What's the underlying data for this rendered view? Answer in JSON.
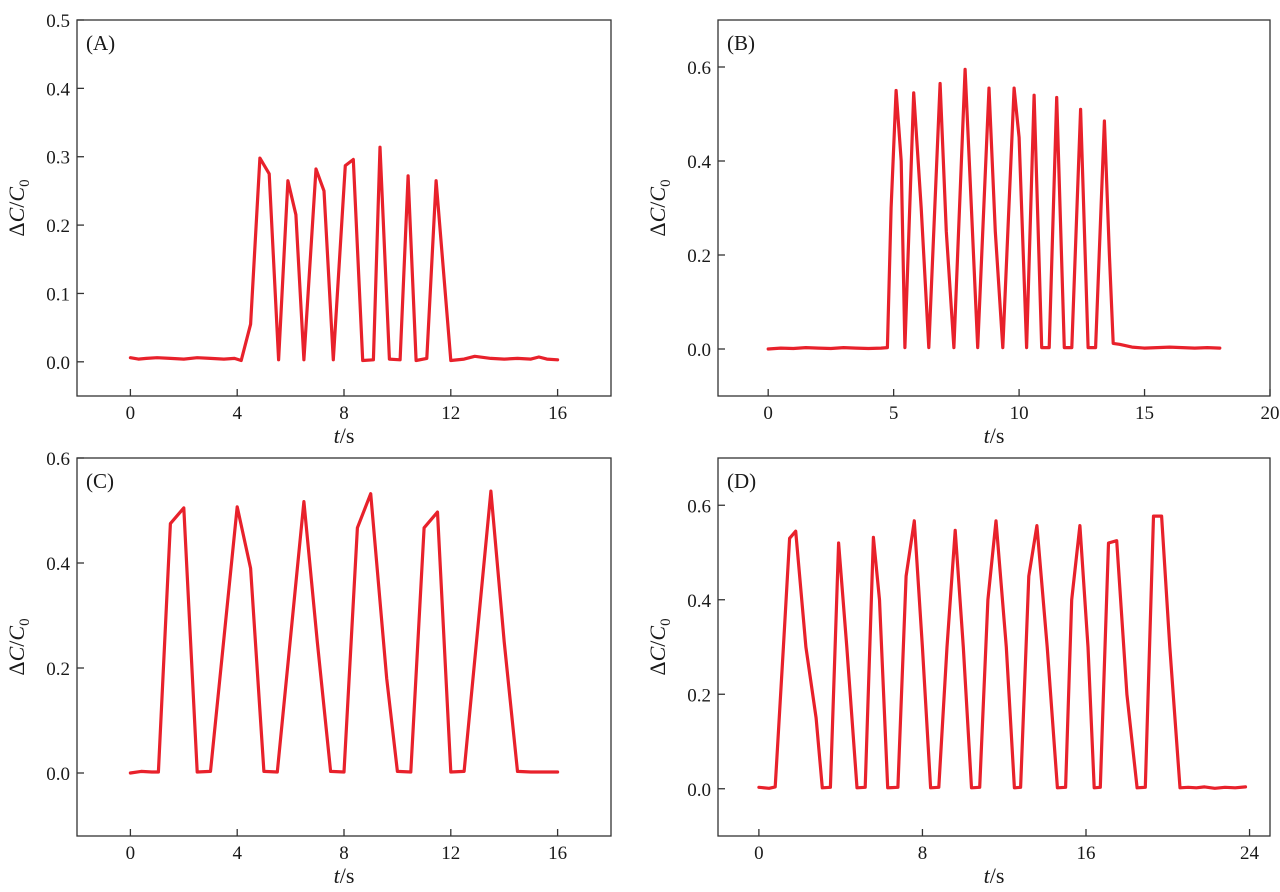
{
  "colors": {
    "line": "#e8212b",
    "axis": "#333333"
  },
  "chart_data": [
    {
      "type": "line",
      "panel_label": "(A)",
      "xlabel": {
        "var": "t",
        "unit": "/s"
      },
      "ylabel": {
        "delta": "Δ",
        "var": "C",
        "sep": "/",
        "sub_var": "C",
        "sub": "0"
      },
      "xlim": [
        -2,
        18
      ],
      "ylim": [
        -0.05,
        0.5
      ],
      "xticks": [
        0,
        4,
        8,
        12,
        16
      ],
      "xtick_labels": [
        "0",
        "4",
        "8",
        "12",
        "16"
      ],
      "yticks": [
        0.0,
        0.1,
        0.2,
        0.3,
        0.4,
        0.5
      ],
      "ytick_labels": [
        "0.0",
        "0.1",
        "0.2",
        "0.3",
        "0.4",
        "0.5"
      ],
      "series": [
        {
          "x": [
            0,
            0.3,
            0.6,
            1.0,
            1.5,
            2.0,
            2.5,
            3.0,
            3.5,
            3.9,
            4.15,
            4.5,
            4.85,
            5.2,
            5.55,
            5.9,
            6.2,
            6.5,
            6.95,
            7.25,
            7.6,
            8.05,
            8.35,
            8.7,
            9.1,
            9.35,
            9.7,
            10.1,
            10.4,
            10.7,
            11.1,
            11.45,
            12.0,
            12.5,
            12.9,
            13.5,
            14.0,
            14.5,
            15.0,
            15.3,
            15.6,
            16.0
          ],
          "y": [
            0.006,
            0.004,
            0.005,
            0.006,
            0.005,
            0.004,
            0.006,
            0.005,
            0.004,
            0.005,
            0.002,
            0.055,
            0.298,
            0.275,
            0.003,
            0.265,
            0.215,
            0.003,
            0.282,
            0.25,
            0.003,
            0.287,
            0.296,
            0.002,
            0.003,
            0.314,
            0.004,
            0.003,
            0.272,
            0.002,
            0.005,
            0.265,
            0.002,
            0.004,
            0.008,
            0.005,
            0.004,
            0.005,
            0.004,
            0.007,
            0.004,
            0.003
          ]
        }
      ]
    },
    {
      "type": "line",
      "panel_label": "(B)",
      "xlabel": {
        "var": "t",
        "unit": "/s"
      },
      "ylabel": {
        "delta": "Δ",
        "var": "C",
        "sep": "/",
        "sub_var": "C",
        "sub": "0"
      },
      "xlim": [
        -2,
        20
      ],
      "ylim": [
        -0.1,
        0.7
      ],
      "xticks": [
        0,
        5,
        10,
        15,
        20
      ],
      "xtick_labels": [
        "0",
        "5",
        "10",
        "15",
        "20"
      ],
      "yticks": [
        0.0,
        0.2,
        0.4,
        0.6
      ],
      "ytick_labels": [
        "0.0",
        "0.2",
        "0.4",
        "0.6"
      ],
      "series": [
        {
          "x": [
            0,
            0.5,
            1.0,
            1.5,
            2.0,
            2.5,
            3.0,
            3.5,
            4.0,
            4.5,
            4.75,
            4.9,
            5.1,
            5.3,
            5.45,
            5.8,
            6.1,
            6.4,
            6.85,
            7.1,
            7.4,
            7.85,
            8.1,
            8.35,
            8.8,
            9.05,
            9.35,
            9.8,
            10.0,
            10.3,
            10.6,
            10.9,
            11.2,
            11.5,
            11.8,
            12.1,
            12.45,
            12.75,
            13.05,
            13.4,
            13.6,
            13.75,
            14.0,
            14.5,
            15.0,
            15.5,
            16.0,
            16.5,
            17.0,
            17.5,
            18.0
          ],
          "y": [
            0,
            0.002,
            0.001,
            0.003,
            0.002,
            0.001,
            0.003,
            0.002,
            0.001,
            0.002,
            0.003,
            0.3,
            0.55,
            0.4,
            0.003,
            0.545,
            0.3,
            0.003,
            0.565,
            0.25,
            0.003,
            0.595,
            0.3,
            0.003,
            0.555,
            0.25,
            0.003,
            0.555,
            0.45,
            0.003,
            0.54,
            0.003,
            0.003,
            0.535,
            0.003,
            0.003,
            0.51,
            0.003,
            0.003,
            0.485,
            0.2,
            0.012,
            0.01,
            0.004,
            0.002,
            0.003,
            0.004,
            0.003,
            0.002,
            0.003,
            0.002
          ]
        }
      ]
    },
    {
      "type": "line",
      "panel_label": "(C)",
      "xlabel": {
        "var": "t",
        "unit": "/s"
      },
      "ylabel": {
        "delta": "Δ",
        "var": "C",
        "sep": "/",
        "sub_var": "C",
        "sub": "0"
      },
      "xlim": [
        -2,
        18
      ],
      "ylim": [
        -0.12,
        0.6
      ],
      "xticks": [
        0,
        4,
        8,
        12,
        16
      ],
      "xtick_labels": [
        "0",
        "4",
        "8",
        "12",
        "16"
      ],
      "yticks": [
        0.0,
        0.2,
        0.4,
        0.6
      ],
      "ytick_labels": [
        "0.0",
        "0.2",
        "0.4",
        "0.6"
      ],
      "series": [
        {
          "x": [
            0,
            0.4,
            0.8,
            1.05,
            1.5,
            2.0,
            2.5,
            3.0,
            4.0,
            4.5,
            5.0,
            5.5,
            6.5,
            7.0,
            7.5,
            8.0,
            8.5,
            9.0,
            9.6,
            10.0,
            10.5,
            11.0,
            11.5,
            12.0,
            12.5,
            13.5,
            14.0,
            14.5,
            15.0,
            16.0
          ],
          "y": [
            0,
            0.003,
            0.002,
            0.002,
            0.475,
            0.505,
            0.002,
            0.003,
            0.507,
            0.39,
            0.003,
            0.002,
            0.517,
            0.25,
            0.003,
            0.002,
            0.467,
            0.532,
            0.18,
            0.003,
            0.002,
            0.467,
            0.497,
            0.002,
            0.003,
            0.537,
            0.25,
            0.003,
            0.002,
            0.002
          ]
        }
      ]
    },
    {
      "type": "line",
      "panel_label": "(D)",
      "xlabel": {
        "var": "t",
        "unit": "/s"
      },
      "ylabel": {
        "delta": "Δ",
        "var": "C",
        "sep": "/",
        "sub_var": "C",
        "sub": "0"
      },
      "xlim": [
        -2,
        25
      ],
      "ylim": [
        -0.1,
        0.7
      ],
      "xticks": [
        0,
        8,
        16,
        24
      ],
      "xtick_labels": [
        "0",
        "8",
        "16",
        "24"
      ],
      "yticks": [
        0.0,
        0.2,
        0.4,
        0.6
      ],
      "ytick_labels": [
        "0.0",
        "0.2",
        "0.4",
        "0.6"
      ],
      "series": [
        {
          "x": [
            0,
            0.5,
            0.8,
            1.2,
            1.5,
            1.8,
            2.3,
            2.8,
            3.1,
            3.5,
            3.9,
            4.3,
            4.8,
            5.2,
            5.6,
            5.9,
            6.3,
            6.8,
            7.2,
            7.6,
            8.0,
            8.4,
            8.8,
            9.2,
            9.6,
            10.0,
            10.4,
            10.8,
            11.2,
            11.6,
            12.1,
            12.5,
            12.8,
            13.2,
            13.6,
            14.1,
            14.6,
            15.0,
            15.3,
            15.7,
            16.1,
            16.4,
            16.7,
            17.1,
            17.5,
            18.0,
            18.5,
            18.9,
            19.3,
            19.7,
            20.1,
            20.6,
            21.0,
            21.4,
            21.8,
            22.3,
            22.8,
            23.3,
            23.8
          ],
          "y": [
            0.003,
            0.001,
            0.004,
            0.3,
            0.53,
            0.545,
            0.3,
            0.15,
            0.002,
            0.003,
            0.52,
            0.3,
            0.002,
            0.003,
            0.532,
            0.4,
            0.002,
            0.003,
            0.45,
            0.567,
            0.3,
            0.002,
            0.003,
            0.3,
            0.547,
            0.3,
            0.002,
            0.003,
            0.4,
            0.567,
            0.3,
            0.002,
            0.003,
            0.45,
            0.557,
            0.3,
            0.002,
            0.003,
            0.4,
            0.557,
            0.3,
            0.002,
            0.003,
            0.52,
            0.525,
            0.2,
            0.002,
            0.003,
            0.577,
            0.577,
            0.3,
            0.002,
            0.003,
            0.002,
            0.004,
            0.001,
            0.003,
            0.002,
            0.004
          ]
        }
      ]
    }
  ]
}
